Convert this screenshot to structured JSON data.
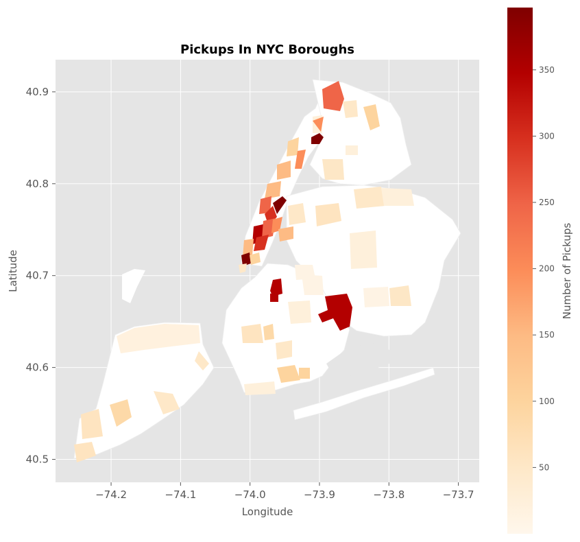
{
  "chart_data": {
    "type": "choropleth-map",
    "title": "Pickups In NYC Boroughs",
    "xlabel": "Longitude",
    "ylabel": "Latitude",
    "xlim": [
      -74.28,
      -73.67
    ],
    "ylim": [
      40.475,
      40.935
    ],
    "x_ticks": [
      -74.2,
      -74.1,
      -74.0,
      -73.9,
      -73.8,
      -73.7
    ],
    "x_tick_labels": [
      "−74.2",
      "−74.1",
      "−74.0",
      "−73.9",
      "−73.8",
      "−73.7"
    ],
    "y_ticks": [
      40.5,
      40.6,
      40.7,
      40.8,
      40.9
    ],
    "y_tick_labels": [
      "40.5",
      "40.6",
      "40.7",
      "40.8",
      "40.9"
    ],
    "grid": true,
    "colorbar": {
      "label": "Number of Pickups",
      "colormap": "OrRd",
      "range": [
        0,
        397
      ],
      "ticks": [
        50,
        100,
        150,
        200,
        250,
        300,
        350
      ],
      "tick_labels": [
        "50",
        "100",
        "150",
        "200",
        "250",
        "300",
        "350"
      ]
    },
    "colors": {
      "axes_background": "#e5e5e5",
      "grid": "#ffffff",
      "land_base": "#fff7ec",
      "high": "#7f0000"
    }
  }
}
